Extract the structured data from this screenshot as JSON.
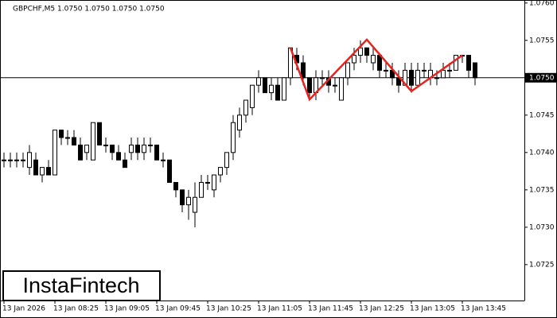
{
  "chart_data": {
    "type": "candlestick",
    "title": "GBPCHF,M5  1.0750 1.0750 1.0750 1.0750",
    "watermark": "InstaFintech",
    "categories": [
      "13 Jan 2026",
      null,
      null,
      null,
      null,
      null,
      null,
      null,
      "13 Jan 08:25",
      null,
      null,
      null,
      null,
      null,
      null,
      null,
      "13 Jan 09:05",
      null,
      null,
      null,
      null,
      null,
      null,
      null,
      "13 Jan 09:45",
      null,
      null,
      null,
      null,
      null,
      null,
      null,
      "13 Jan 10:25",
      null,
      null,
      null,
      null,
      null,
      null,
      null,
      "13 Jan 11:05",
      null,
      null,
      null,
      null,
      null,
      null,
      null,
      "13 Jan 11:45",
      null,
      null,
      null,
      null,
      null,
      null,
      null,
      "13 Jan 12:25",
      null,
      null,
      null,
      null,
      null,
      null,
      null,
      "13 Jan 13:05",
      null,
      null,
      null,
      null,
      null,
      null,
      null,
      "13 Jan 13:45",
      null,
      null
    ],
    "open": [
      1.0739,
      1.0739,
      1.0739,
      1.0739,
      1.0738,
      1.0739,
      1.0737,
      1.0738,
      1.0737,
      1.0743,
      1.0742,
      1.0742,
      1.0741,
      1.074,
      1.0739,
      1.0744,
      1.0741,
      1.0741,
      1.074,
      1.0739,
      1.074,
      1.0741,
      1.074,
      1.0741,
      1.0741,
      1.0739,
      1.0739,
      1.0736,
      1.0735,
      1.0733,
      1.0732,
      1.0734,
      1.0736,
      1.0735,
      1.0737,
      1.0738,
      1.074,
      1.0743,
      1.0745,
      1.0746,
      1.0749,
      1.075,
      1.0748,
      1.0749,
      1.0747,
      1.075,
      1.0753,
      1.0752,
      1.075,
      1.0748,
      1.075,
      1.075,
      1.0749,
      1.0747,
      1.075,
      1.0752,
      1.0753,
      1.0754,
      1.0752,
      1.0753,
      1.0751,
      1.0751,
      1.075,
      1.0749,
      1.0751,
      1.0749,
      1.0751,
      1.075,
      1.075,
      1.075,
      1.0751,
      1.0751,
      1.0753,
      1.0753,
      1.0752
    ],
    "high": [
      1.074,
      1.074,
      1.074,
      1.074,
      1.0741,
      1.074,
      1.0738,
      1.0739,
      1.0743,
      1.0743,
      1.0743,
      1.0743,
      1.0742,
      1.0741,
      1.0744,
      1.0744,
      1.0742,
      1.0741,
      1.0741,
      1.074,
      1.0742,
      1.0742,
      1.0742,
      1.0742,
      1.0741,
      1.074,
      1.0739,
      1.0736,
      1.0735,
      1.0735,
      1.0736,
      1.0737,
      1.0737,
      1.0737,
      1.0738,
      1.074,
      1.0745,
      1.0746,
      1.0747,
      1.0749,
      1.0751,
      1.075,
      1.075,
      1.075,
      1.075,
      1.0754,
      1.0754,
      1.0753,
      1.075,
      1.0751,
      1.0751,
      1.0751,
      1.075,
      1.075,
      1.0752,
      1.0754,
      1.0755,
      1.0754,
      1.0754,
      1.0753,
      1.0752,
      1.0752,
      1.0751,
      1.0752,
      1.0752,
      1.0752,
      1.0752,
      1.0752,
      1.0751,
      1.0752,
      1.0752,
      1.0753,
      1.0753,
      1.0753,
      1.0752
    ],
    "low": [
      1.0738,
      1.0738,
      1.0738,
      1.0738,
      1.0737,
      1.0737,
      1.0736,
      1.0737,
      1.0737,
      1.0741,
      1.0741,
      1.0741,
      1.0739,
      1.0739,
      1.0739,
      1.0741,
      1.074,
      1.0739,
      1.0739,
      1.0738,
      1.0739,
      1.0739,
      1.0739,
      1.074,
      1.0739,
      1.0738,
      1.0736,
      1.0734,
      1.0732,
      1.0731,
      1.073,
      1.0734,
      1.0735,
      1.0734,
      1.0736,
      1.0737,
      1.0739,
      1.0742,
      1.0744,
      1.0745,
      1.0748,
      1.0748,
      1.0747,
      1.0747,
      1.0747,
      1.0749,
      1.0751,
      1.0749,
      1.0747,
      1.0747,
      1.0749,
      1.0748,
      1.0748,
      1.0747,
      1.0749,
      1.0751,
      1.0752,
      1.0752,
      1.0751,
      1.075,
      1.075,
      1.0749,
      1.0748,
      1.0749,
      1.0748,
      1.0749,
      1.075,
      1.0749,
      1.0749,
      1.075,
      1.075,
      1.0751,
      1.0752,
      1.075,
      1.0749
    ],
    "close": [
      1.0739,
      1.0739,
      1.0739,
      1.0739,
      1.074,
      1.0737,
      1.0738,
      1.0737,
      1.0743,
      1.0742,
      1.0742,
      1.0741,
      1.0739,
      1.0741,
      1.0744,
      1.0741,
      1.0741,
      1.074,
      1.0739,
      1.0738,
      1.0741,
      1.074,
      1.0741,
      1.0741,
      1.0739,
      1.0739,
      1.0736,
      1.0735,
      1.0733,
      1.0734,
      1.0734,
      1.0736,
      1.0736,
      1.0737,
      1.0738,
      1.074,
      1.0744,
      1.0745,
      1.0747,
      1.0749,
      1.075,
      1.0748,
      1.0749,
      1.0747,
      1.075,
      1.0754,
      1.0752,
      1.075,
      1.0748,
      1.075,
      1.075,
      1.0749,
      1.0749,
      1.075,
      1.0752,
      1.0753,
      1.0754,
      1.0753,
      1.0753,
      1.0751,
      1.0751,
      1.075,
      1.0749,
      1.0751,
      1.0749,
      1.0751,
      1.0751,
      1.0751,
      1.075,
      1.0751,
      1.0751,
      1.0753,
      1.0753,
      1.0751,
      1.075
    ],
    "up_color": "#ffffff",
    "down_color": "#000000",
    "pattern": {
      "color": "#e8231e",
      "x": [
        45,
        48,
        57,
        64,
        72
      ],
      "values": [
        1.0754,
        1.07471,
        1.07551,
        1.07482,
        1.0753
      ]
    },
    "price_line": {
      "value": 1.075,
      "label": "1.0750"
    },
    "ylim": [
      1.07202,
      1.07604
    ],
    "yticks": [
      {
        "value": 1.0725,
        "label": "1.0725"
      },
      {
        "value": 1.073,
        "label": "1.0730"
      },
      {
        "value": 1.0735,
        "label": "1.0735"
      },
      {
        "value": 1.074,
        "label": "1.0740"
      },
      {
        "value": 1.0745,
        "label": "1.0745"
      },
      {
        "value": 1.075,
        "label": "1.0750"
      },
      {
        "value": 1.0755,
        "label": "1.0755"
      },
      {
        "value": 1.076,
        "label": "1.0760"
      }
    ]
  }
}
